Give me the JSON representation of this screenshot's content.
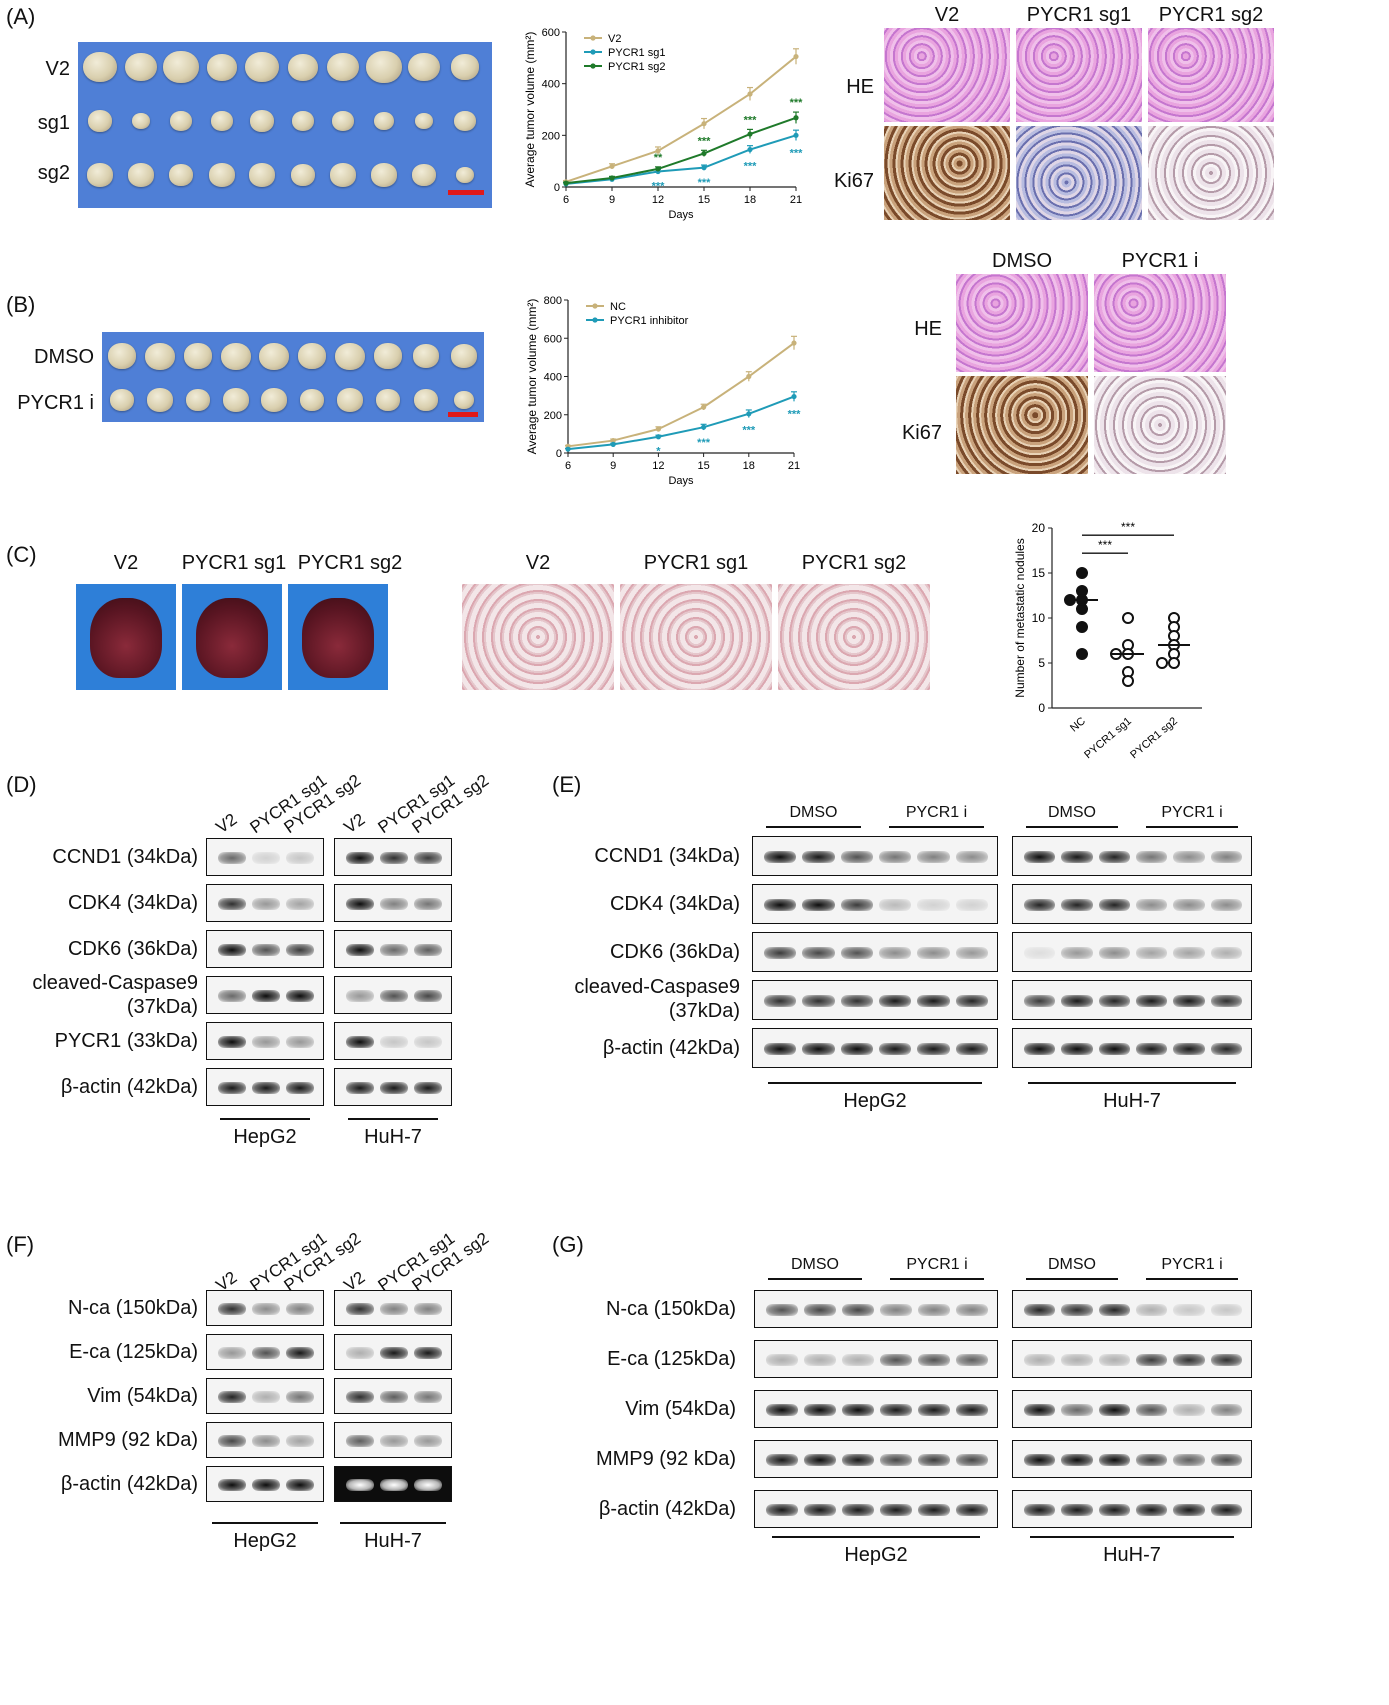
{
  "panels": {
    "A": {
      "label": "(A)",
      "tumor_rows": [
        "V2",
        "sg1",
        "sg2"
      ],
      "histo_cols": [
        "V2",
        "PYCR1 sg1",
        "PYCR1 sg2"
      ],
      "histo_rows": [
        "HE",
        "Ki67"
      ]
    },
    "B": {
      "label": "(B)",
      "tumor_rows": [
        "DMSO",
        "PYCR1 i"
      ],
      "histo_cols": [
        "DMSO",
        "PYCR1 i"
      ],
      "histo_rows": [
        "HE",
        "Ki67"
      ]
    },
    "C": {
      "label": "(C)",
      "photo_cols": [
        "V2",
        "PYCR1 sg1",
        "PYCR1 sg2"
      ],
      "histo_cols": [
        "V2",
        "PYCR1 sg1",
        "PYCR1 sg2"
      ]
    },
    "D": {
      "label": "(D)",
      "lanes": [
        "V2",
        "PYCR1 sg1",
        "PYCR1 sg2",
        "V2",
        "PYCR1 sg1",
        "PYCR1 sg2"
      ],
      "rows": [
        "CCND1 (34kDa)",
        "CDK4 (34kDa)",
        "CDK6 (36kDa)",
        "cleaved-Caspase9",
        "(37kDa)",
        "PYCR1 (33kDa)",
        "β-actin (42kDa)"
      ],
      "cells": [
        "HepG2",
        "HuH-7"
      ]
    },
    "E": {
      "label": "(E)",
      "groups": [
        "DMSO",
        "PYCR1 i",
        "DMSO",
        "PYCR1 i"
      ],
      "rows": [
        "CCND1 (34kDa)",
        "CDK4 (34kDa)",
        "CDK6 (36kDa)",
        "cleaved-Caspase9",
        "(37kDa)",
        "β-actin (42kDa)"
      ],
      "cells": [
        "HepG2",
        "HuH-7"
      ]
    },
    "F": {
      "label": "(F)",
      "lanes": [
        "V2",
        "PYCR1 sg1",
        "PYCR1 sg2",
        "V2",
        "PYCR1 sg1",
        "PYCR1 sg2"
      ],
      "rows": [
        "N-ca (150kDa)",
        "E-ca (125kDa)",
        "Vim (54kDa)",
        "MMP9 (92 kDa)",
        "β-actin (42kDa)"
      ],
      "cells": [
        "HepG2",
        "HuH-7"
      ]
    },
    "G": {
      "label": "(G)",
      "groups": [
        "DMSO",
        "PYCR1 i",
        "DMSO",
        "PYCR1 i"
      ],
      "rows": [
        "N-ca (150kDa)",
        "E-ca (125kDa)",
        "Vim (54kDa)",
        "MMP9 (92 kDa)",
        "β-actin (42kDa)"
      ],
      "cells": [
        "HepG2",
        "HuH-7"
      ]
    }
  },
  "chart_data": [
    {
      "type": "line",
      "id": "A-growth",
      "ylabel": "Average tumor volume (mm²)",
      "xlabel": "Days",
      "x": [
        6,
        9,
        12,
        15,
        18,
        21
      ],
      "xticks": [
        "6",
        "9",
        "12",
        "15",
        "18",
        "21"
      ],
      "ylim": [
        0,
        600
      ],
      "yticks": [
        0,
        200,
        400,
        600
      ],
      "legend_position": "top-left",
      "series": [
        {
          "name": "V2",
          "color": "#c8b27a",
          "values": [
            20,
            80,
            140,
            245,
            360,
            505
          ],
          "err": [
            5,
            10,
            15,
            20,
            25,
            30
          ]
        },
        {
          "name": "PYCR1 sg1",
          "color": "#1f9bb7",
          "values": [
            12,
            30,
            60,
            75,
            145,
            200
          ],
          "err": [
            4,
            6,
            8,
            10,
            15,
            20
          ]
        },
        {
          "name": "PYCR1 sg2",
          "color": "#1f7a2a",
          "values": [
            15,
            35,
            70,
            130,
            205,
            268
          ],
          "err": [
            4,
            6,
            8,
            12,
            18,
            22
          ]
        }
      ],
      "annotations": [
        {
          "x": 12,
          "text": "**",
          "series": "PYCR1 sg2"
        },
        {
          "x": 15,
          "text": "***",
          "series": "PYCR1 sg2"
        },
        {
          "x": 18,
          "text": "***",
          "series": "PYCR1 sg2"
        },
        {
          "x": 21,
          "text": "***",
          "series": "PYCR1 sg2"
        },
        {
          "x": 12,
          "text": "***",
          "series": "PYCR1 sg1"
        },
        {
          "x": 15,
          "text": "***",
          "series": "PYCR1 sg1"
        },
        {
          "x": 18,
          "text": "***",
          "series": "PYCR1 sg1"
        },
        {
          "x": 21,
          "text": "***",
          "series": "PYCR1 sg1"
        }
      ]
    },
    {
      "type": "line",
      "id": "B-growth",
      "ylabel": "Average tumor volume (mm²)",
      "xlabel": "Days",
      "x": [
        6,
        9,
        12,
        15,
        18,
        21
      ],
      "xticks": [
        "6",
        "9",
        "12",
        "15",
        "18",
        "21"
      ],
      "ylim": [
        0,
        800
      ],
      "yticks": [
        0,
        200,
        400,
        600,
        800
      ],
      "legend_position": "top-left",
      "series": [
        {
          "name": "NC",
          "color": "#c8b27a",
          "values": [
            35,
            65,
            125,
            240,
            400,
            575
          ],
          "err": [
            5,
            8,
            12,
            15,
            25,
            35
          ]
        },
        {
          "name": "PYCR1 inhibitor",
          "color": "#1f9bb7",
          "values": [
            20,
            45,
            85,
            135,
            205,
            295
          ],
          "err": [
            4,
            6,
            8,
            15,
            20,
            25
          ]
        }
      ],
      "annotations": [
        {
          "x": 12,
          "text": "*",
          "series": "PYCR1 inhibitor"
        },
        {
          "x": 15,
          "text": "***",
          "series": "PYCR1 inhibitor"
        },
        {
          "x": 18,
          "text": "***",
          "series": "PYCR1 inhibitor"
        },
        {
          "x": 21,
          "text": "***",
          "series": "PYCR1 inhibitor"
        }
      ]
    },
    {
      "type": "scatter",
      "id": "C-nodules",
      "ylabel": "Number of metastatic nodules",
      "categories": [
        "NC",
        "PYCR1 sg1",
        "PYCR1 sg2"
      ],
      "ylim": [
        0,
        20
      ],
      "yticks": [
        0,
        5,
        10,
        15,
        20
      ],
      "series": [
        {
          "name": "NC",
          "filled": true,
          "values": [
            15,
            13,
            12,
            12,
            11,
            9,
            6
          ],
          "mean": 12
        },
        {
          "name": "PYCR1 sg1",
          "filled": false,
          "values": [
            10,
            7,
            6,
            6,
            4,
            3
          ],
          "mean": 6
        },
        {
          "name": "PYCR1 sg2",
          "filled": false,
          "values": [
            10,
            9,
            8,
            7,
            6,
            5,
            5
          ],
          "mean": 7
        }
      ],
      "significance": [
        "***",
        "***"
      ]
    }
  ]
}
